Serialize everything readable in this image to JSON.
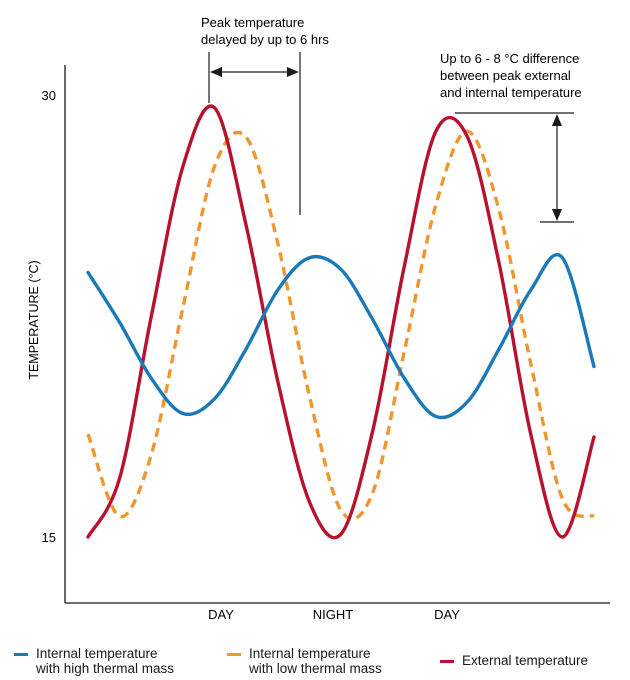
{
  "chart_data": {
    "type": "line",
    "title": "",
    "ylabel": "TEMPERATURE (°C)",
    "xlabel": "",
    "ylim": [
      15,
      30
    ],
    "y_ticks": [
      15,
      30
    ],
    "x_period_labels": [
      "DAY",
      "NIGHT",
      "DAY"
    ],
    "x": [
      0,
      3,
      6,
      9,
      12,
      15,
      18,
      21,
      24,
      27,
      30,
      33,
      36,
      39,
      42,
      45,
      48
    ],
    "series": [
      {
        "name": "Internal temperature with high thermal mass",
        "color": "#1a7ab8",
        "style": "solid",
        "values": [
          24.0,
          22.3,
          20.4,
          19.2,
          19.7,
          21.4,
          23.4,
          24.5,
          24.1,
          22.4,
          20.4,
          19.1,
          19.6,
          21.4,
          23.4,
          24.5,
          20.8
        ]
      },
      {
        "name": "Internal temperature with low thermal mass",
        "color": "#f0962e",
        "style": "dashed",
        "values": [
          18.5,
          15.7,
          17.8,
          22.8,
          27.6,
          28.6,
          25.0,
          19.8,
          15.9,
          16.5,
          21.3,
          26.3,
          28.8,
          26.1,
          20.9,
          16.3,
          15.7
        ]
      },
      {
        "name": "External temperature",
        "color": "#b8112e",
        "style": "solid",
        "values": [
          15.0,
          17.0,
          22.5,
          27.6,
          29.6,
          25.6,
          20.3,
          16.2,
          15.1,
          18.6,
          24.2,
          28.8,
          28.6,
          24.3,
          18.5,
          15.0,
          18.4
        ]
      }
    ],
    "annotations": [
      {
        "id": "delay",
        "text_lines": [
          "Peak temperature",
          "delayed by up to 6 hrs"
        ]
      },
      {
        "id": "difference",
        "text_lines": [
          "Up to 6 - 8 °C difference",
          "between peak external",
          "and internal temperature"
        ]
      }
    ],
    "legend_position": "bottom",
    "grid": false
  },
  "legend": [
    {
      "label_lines": [
        "Internal temperature",
        "with high thermal mass"
      ],
      "color": "#1a7ab8",
      "style": "solid"
    },
    {
      "label_lines": [
        "Internal temperature",
        "with low thermal mass"
      ],
      "color": "#f0962e",
      "style": "dashed"
    },
    {
      "label_lines": [
        "External temperature"
      ],
      "color": "#b8112e",
      "style": "solid"
    }
  ]
}
